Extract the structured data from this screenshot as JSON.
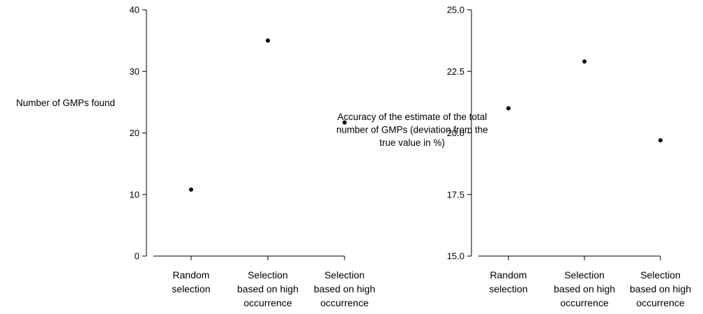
{
  "chart_data": [
    {
      "type": "scatter",
      "categories": [
        "Random selection",
        "Selection based on high occurrence",
        "Selection based on high occurrence"
      ],
      "values": [
        10.8,
        35.0,
        21.7
      ],
      "ylabel": "Number of GMPs found",
      "ylim": [
        0,
        40
      ],
      "yticks": [
        "0",
        "10",
        "20",
        "30",
        "40"
      ],
      "grid": false
    },
    {
      "type": "scatter",
      "categories": [
        "Random selection",
        "Selection based on high occurrence",
        "Selection based on high occurrence"
      ],
      "values": [
        21.0,
        22.9,
        19.7
      ],
      "ylabel": "Accuracy of the estimate of the total number of GMPs (deviation from the true value in %)",
      "ylabel_lines": [
        "Accuracy of the estimate of the total",
        "number of GMPs (deviation from the",
        "true value in %)"
      ],
      "ylim": [
        15.0,
        25.0
      ],
      "yticks": [
        "15.0",
        "17.5",
        "20.0",
        "22.5",
        "25.0"
      ],
      "grid": false
    }
  ]
}
